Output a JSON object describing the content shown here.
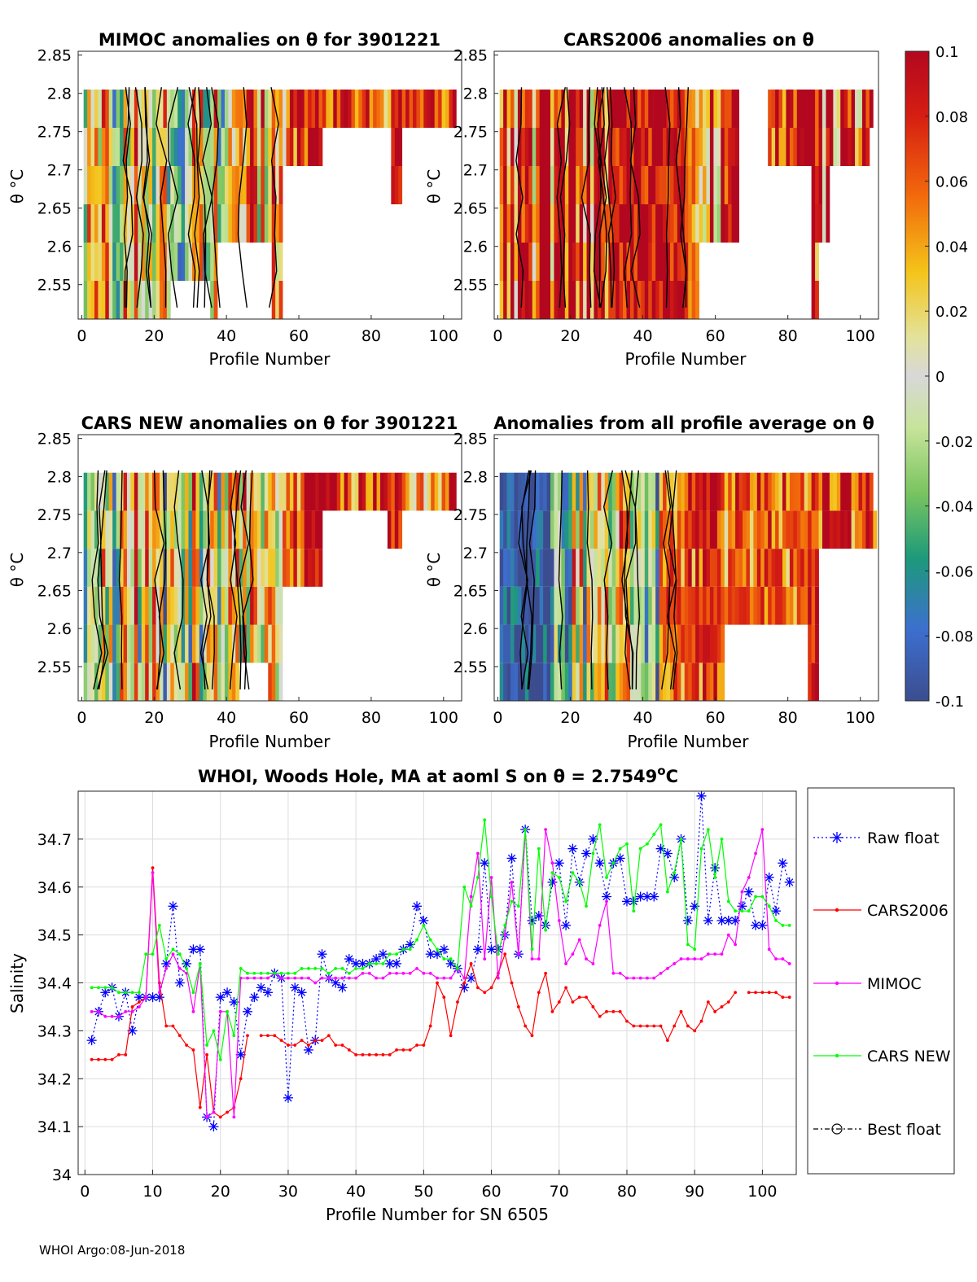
{
  "footer": "WHOI Argo:08-Jun-2018",
  "colorbar": {
    "ticks": [
      "0.1",
      "0.08",
      "0.06",
      "0.04",
      "0.02",
      "0",
      "-0.02",
      "-0.04",
      "-0.06",
      "-0.08",
      "-0.1"
    ],
    "range": [
      -0.1,
      0.1
    ]
  },
  "panels": [
    {
      "title": "MIMOC anomalies on θ  for 3901221",
      "xlabel": "Profile Number",
      "ylabel": "θ °C",
      "seed": 11,
      "bias": 0.02
    },
    {
      "title": "CARS2006 anomalies on θ",
      "xlabel": "Profile Number",
      "ylabel": "θ °C",
      "seed": 23,
      "bias": 0.08
    },
    {
      "title": "CARS NEW anomalies on θ for 3901221",
      "xlabel": "Profile Number",
      "ylabel": "θ °C",
      "seed": 37,
      "bias": 0.0
    },
    {
      "title": "Anomalies from all profile average on θ",
      "xlabel": "Profile Number",
      "ylabel": "θ °C",
      "seed": 51,
      "bias": -0.02
    }
  ],
  "panel_axes": {
    "xticks": [
      0,
      20,
      40,
      60,
      80,
      100
    ],
    "xlim": [
      -1,
      105
    ],
    "yticks": [
      2.55,
      2.6,
      2.65,
      2.7,
      2.75,
      2.8,
      2.85
    ],
    "ylim": [
      2.505,
      2.855
    ]
  },
  "chart_data": {
    "type": "line",
    "title": "WHOI, Woods Hole, MA at aoml S on θ = 2.7549°C",
    "xlabel": "Profile Number for SN 6505",
    "ylabel": "Salinity",
    "xlim": [
      -1,
      105
    ],
    "ylim": [
      34.0,
      34.8
    ],
    "xticks": [
      0,
      10,
      20,
      30,
      40,
      50,
      60,
      70,
      80,
      90,
      100
    ],
    "yticks": [
      34,
      34.1,
      34.2,
      34.3,
      34.4,
      34.5,
      34.6,
      34.7
    ],
    "grid": true,
    "legend_position": "outside-right",
    "legend": [
      "Raw float",
      "CARS2006",
      "MIMOC",
      "CARS NEW",
      "Best float"
    ],
    "series": [
      {
        "name": "Raw float",
        "color": "#0000ff",
        "style": "dotted-star",
        "x": [
          1,
          2,
          3,
          4,
          5,
          6,
          7,
          8,
          9,
          10,
          11,
          12,
          13,
          14,
          15,
          16,
          17,
          18,
          19,
          20,
          21,
          22,
          23,
          24,
          25,
          26,
          27,
          28,
          29,
          30,
          31,
          32,
          33,
          34,
          35,
          36,
          37,
          38,
          39,
          40,
          41,
          42,
          43,
          44,
          45,
          46,
          47,
          48,
          49,
          50,
          51,
          52,
          53,
          54,
          55,
          56,
          57,
          58,
          59,
          60,
          61,
          62,
          63,
          64,
          65,
          66,
          67,
          68,
          69,
          70,
          71,
          72,
          73,
          74,
          75,
          76,
          77,
          78,
          79,
          80,
          81,
          82,
          83,
          84,
          85,
          86,
          87,
          88,
          89,
          90,
          91,
          92,
          93,
          94,
          95,
          96,
          97,
          98,
          99,
          100,
          101,
          102,
          103,
          104
        ],
        "values": [
          34.28,
          34.34,
          34.38,
          34.39,
          34.33,
          34.38,
          34.3,
          34.37,
          34.37,
          34.37,
          34.37,
          34.44,
          34.56,
          34.4,
          34.44,
          34.47,
          34.47,
          34.12,
          34.1,
          34.37,
          34.38,
          34.36,
          34.25,
          34.34,
          34.37,
          34.39,
          34.38,
          34.42,
          34.41,
          34.16,
          34.39,
          34.38,
          34.26,
          34.28,
          34.46,
          34.41,
          34.4,
          34.39,
          34.45,
          34.44,
          34.44,
          34.44,
          34.45,
          34.46,
          34.44,
          34.44,
          34.47,
          34.48,
          34.56,
          34.53,
          34.46,
          34.46,
          34.47,
          34.44,
          34.43,
          34.39,
          34.41,
          34.47,
          34.65,
          34.47,
          34.47,
          34.5,
          34.66,
          34.46,
          34.72,
          34.53,
          34.54,
          34.52,
          34.61,
          34.65,
          34.52,
          34.68,
          34.61,
          34.67,
          34.7,
          34.65,
          34.58,
          34.65,
          34.66,
          34.57,
          34.57,
          34.58,
          34.58,
          34.58,
          34.68,
          34.67,
          34.62,
          34.7,
          34.53,
          34.56,
          34.79,
          34.53,
          34.64,
          34.53,
          34.53,
          34.53,
          34.56,
          34.59,
          34.52,
          34.52,
          34.62,
          34.55,
          34.65,
          34.61
        ]
      },
      {
        "name": "CARS2006",
        "color": "#ff0000",
        "style": "solid-dot",
        "x": [
          1,
          2,
          3,
          4,
          5,
          6,
          7,
          8,
          9,
          10,
          11,
          12,
          13,
          14,
          15,
          16,
          17,
          18,
          19,
          20,
          21,
          22,
          23,
          24,
          25,
          26,
          27,
          28,
          29,
          30,
          31,
          32,
          33,
          34,
          35,
          36,
          37,
          38,
          39,
          40,
          41,
          42,
          43,
          44,
          45,
          46,
          47,
          48,
          49,
          50,
          51,
          52,
          53,
          54,
          55,
          56,
          57,
          58,
          59,
          60,
          61,
          62,
          63,
          64,
          65,
          66,
          67,
          68,
          69,
          70,
          71,
          72,
          73,
          74,
          75,
          76,
          77,
          78,
          79,
          80,
          81,
          82,
          83,
          84,
          85,
          86,
          87,
          88,
          89,
          90,
          91,
          92,
          93,
          94,
          95,
          96,
          97,
          98,
          99,
          100,
          101,
          102,
          103,
          104
        ],
        "values": [
          34.24,
          34.24,
          34.24,
          34.24,
          34.25,
          34.25,
          34.35,
          34.36,
          34.37,
          34.64,
          34.4,
          34.31,
          34.31,
          34.29,
          34.27,
          34.26,
          34.14,
          34.25,
          34.13,
          34.12,
          34.13,
          34.14,
          34.2,
          34.29,
          null,
          34.29,
          34.29,
          34.29,
          34.28,
          34.27,
          34.27,
          34.28,
          34.27,
          34.28,
          34.28,
          34.29,
          34.27,
          34.27,
          34.26,
          34.25,
          34.25,
          34.25,
          34.25,
          34.25,
          34.25,
          34.26,
          34.26,
          34.26,
          34.27,
          34.27,
          34.31,
          34.4,
          34.37,
          34.29,
          34.36,
          34.4,
          34.44,
          34.39,
          34.38,
          34.39,
          34.42,
          34.46,
          34.4,
          34.35,
          34.31,
          34.29,
          34.38,
          34.42,
          34.34,
          34.36,
          34.39,
          34.36,
          34.37,
          34.37,
          34.35,
          34.33,
          34.34,
          34.34,
          34.34,
          34.32,
          34.31,
          34.31,
          34.31,
          34.31,
          34.31,
          34.28,
          34.31,
          34.34,
          34.31,
          34.3,
          34.32,
          34.36,
          34.34,
          34.35,
          34.36,
          34.38,
          null,
          34.38,
          34.38,
          34.38,
          34.38,
          34.38,
          34.37,
          34.37
        ]
      },
      {
        "name": "MIMOC",
        "color": "#ff00ff",
        "style": "solid-dot",
        "x": [
          1,
          2,
          3,
          4,
          5,
          6,
          7,
          8,
          9,
          10,
          11,
          12,
          13,
          14,
          15,
          16,
          17,
          18,
          19,
          20,
          21,
          22,
          23,
          24,
          25,
          26,
          27,
          28,
          29,
          30,
          31,
          32,
          33,
          34,
          35,
          36,
          37,
          38,
          39,
          40,
          41,
          42,
          43,
          44,
          45,
          46,
          47,
          48,
          49,
          50,
          51,
          52,
          53,
          54,
          55,
          56,
          57,
          58,
          59,
          60,
          61,
          62,
          63,
          64,
          65,
          66,
          67,
          68,
          69,
          70,
          71,
          72,
          73,
          74,
          75,
          76,
          77,
          78,
          79,
          80,
          81,
          82,
          83,
          84,
          85,
          86,
          87,
          88,
          89,
          90,
          91,
          92,
          93,
          94,
          95,
          96,
          97,
          98,
          99,
          100,
          101,
          102,
          103,
          104
        ],
        "values": [
          34.34,
          34.34,
          34.33,
          34.33,
          34.33,
          34.34,
          34.34,
          34.35,
          34.37,
          34.63,
          34.38,
          34.43,
          34.46,
          34.43,
          34.42,
          34.34,
          34.44,
          34.12,
          34.13,
          34.34,
          34.34,
          34.12,
          34.41,
          34.41,
          34.41,
          34.41,
          34.41,
          34.42,
          34.41,
          34.41,
          34.41,
          34.41,
          34.41,
          34.4,
          34.41,
          34.41,
          34.41,
          34.41,
          34.41,
          34.41,
          34.42,
          34.42,
          34.41,
          34.41,
          34.42,
          34.42,
          34.42,
          34.42,
          34.43,
          34.42,
          34.42,
          34.41,
          34.41,
          34.41,
          34.43,
          34.41,
          34.58,
          34.67,
          34.45,
          34.62,
          34.41,
          34.5,
          34.61,
          34.46,
          34.72,
          34.45,
          34.45,
          34.72,
          34.65,
          34.53,
          34.44,
          34.46,
          34.49,
          34.45,
          34.44,
          34.52,
          34.57,
          34.42,
          34.42,
          34.41,
          34.41,
          34.41,
          34.41,
          34.41,
          34.42,
          34.43,
          34.44,
          34.45,
          34.45,
          34.45,
          34.45,
          34.46,
          34.46,
          34.46,
          34.5,
          34.48,
          34.59,
          34.62,
          34.67,
          34.72,
          34.47,
          34.45,
          34.45,
          34.44
        ]
      },
      {
        "name": "CARS NEW",
        "color": "#00ff00",
        "style": "solid-dot",
        "x": [
          1,
          2,
          3,
          4,
          5,
          6,
          7,
          8,
          9,
          10,
          11,
          12,
          13,
          14,
          15,
          16,
          17,
          18,
          19,
          20,
          21,
          22,
          23,
          24,
          25,
          26,
          27,
          28,
          29,
          30,
          31,
          32,
          33,
          34,
          35,
          36,
          37,
          38,
          39,
          40,
          41,
          42,
          43,
          44,
          45,
          46,
          47,
          48,
          49,
          50,
          51,
          52,
          53,
          54,
          55,
          56,
          57,
          58,
          59,
          60,
          61,
          62,
          63,
          64,
          65,
          66,
          67,
          68,
          69,
          70,
          71,
          72,
          73,
          74,
          75,
          76,
          77,
          78,
          79,
          80,
          81,
          82,
          83,
          84,
          85,
          86,
          87,
          88,
          89,
          90,
          91,
          92,
          93,
          94,
          95,
          96,
          97,
          98,
          99,
          100,
          101,
          102,
          103,
          104
        ],
        "values": [
          34.39,
          34.39,
          34.39,
          34.39,
          34.38,
          34.38,
          34.38,
          34.38,
          34.46,
          34.46,
          34.52,
          34.45,
          34.47,
          34.46,
          34.43,
          34.38,
          34.44,
          34.27,
          34.3,
          34.24,
          34.34,
          34.29,
          34.43,
          34.42,
          34.42,
          34.42,
          34.42,
          34.42,
          34.42,
          34.42,
          34.42,
          34.43,
          34.43,
          34.43,
          34.43,
          34.42,
          34.43,
          34.43,
          34.42,
          34.43,
          34.43,
          34.44,
          34.44,
          34.44,
          34.46,
          34.46,
          34.47,
          34.47,
          34.49,
          34.52,
          34.49,
          34.47,
          34.45,
          34.45,
          34.43,
          34.6,
          34.56,
          34.62,
          34.74,
          34.58,
          34.46,
          34.52,
          34.57,
          34.56,
          34.72,
          34.47,
          34.68,
          34.51,
          34.63,
          34.62,
          34.57,
          34.63,
          34.61,
          34.56,
          34.67,
          34.73,
          34.62,
          34.65,
          34.68,
          34.69,
          34.55,
          34.68,
          34.69,
          34.71,
          34.73,
          34.59,
          34.63,
          34.7,
          34.48,
          34.47,
          34.68,
          34.72,
          34.62,
          34.7,
          34.57,
          34.55,
          34.55,
          34.55,
          34.58,
          34.58,
          34.56,
          34.53,
          34.52,
          34.52
        ]
      },
      {
        "name": "Best float",
        "color": "#000000",
        "style": "dashdot-circle",
        "x": [],
        "values": []
      }
    ]
  }
}
